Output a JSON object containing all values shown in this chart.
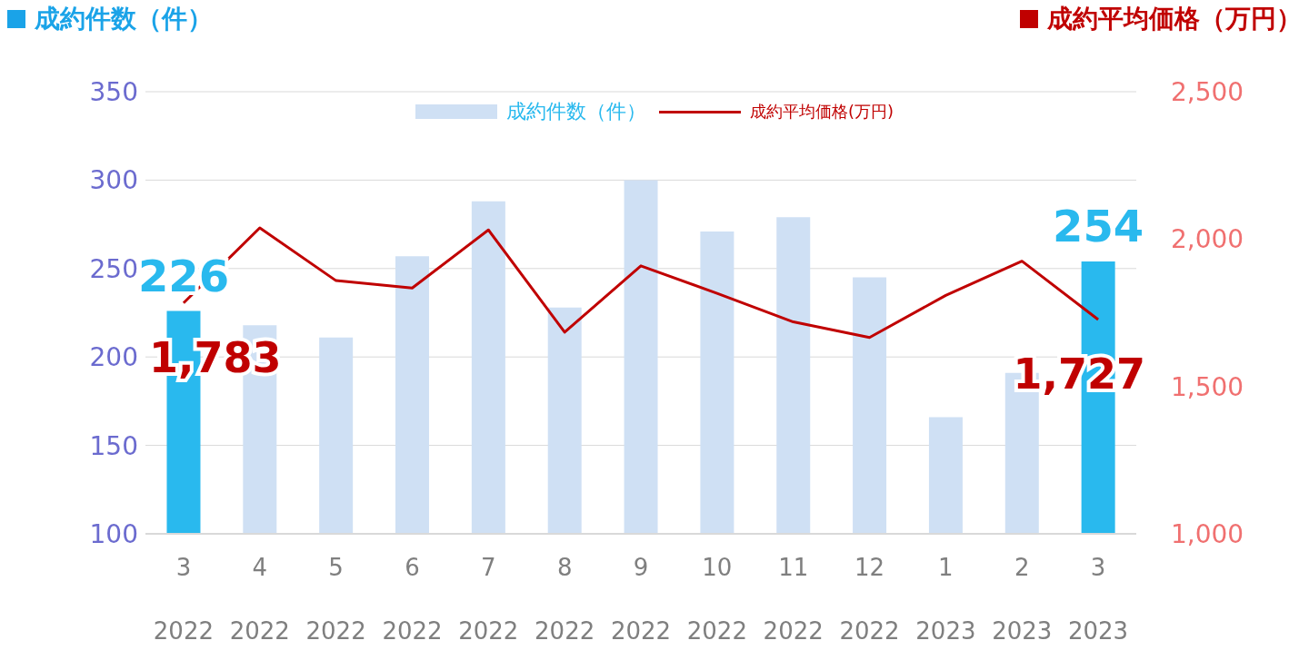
{
  "chart_data": {
    "type": "bar",
    "ylabel": "成約件数（件）",
    "y2label": "成約平均価格（万円）",
    "categories": [
      "3\n2022",
      "4\n2022",
      "5\n2022",
      "6\n2022",
      "7\n2022",
      "8\n2022",
      "9\n2022",
      "10\n2022",
      "11\n2022",
      "12\n2022",
      "1\n2023",
      "2\n2023",
      "3\n2023"
    ],
    "series": [
      {
        "name": "成約件数（件）",
        "color": "#cfe0f4",
        "colors": [
          "#29b9ee",
          "#cfe0f4",
          "#cfe0f4",
          "#cfe0f4",
          "#cfe0f4",
          "#cfe0f4",
          "#cfe0f4",
          "#cfe0f4",
          "#cfe0f4",
          "#cfe0f4",
          "#cfe0f4",
          "#cfe0f4",
          "#29b9ee"
        ],
        "values": [
          226,
          218,
          211,
          257,
          288,
          228,
          300,
          271,
          279,
          245,
          166,
          191,
          254
        ],
        "value_labels": [
          "226",
          null,
          null,
          null,
          null,
          null,
          null,
          null,
          null,
          null,
          null,
          null,
          "254"
        ]
      },
      {
        "name": "成約平均価格(万円)",
        "type": "line",
        "axis": "y2",
        "color": "#c00000",
        "values": [
          1783,
          2038,
          1859,
          1834,
          2031,
          1684,
          1909,
          1816,
          1719,
          1666,
          1809,
          1925,
          1727
        ],
        "value_labels": [
          "1,783",
          null,
          null,
          null,
          null,
          null,
          null,
          null,
          null,
          null,
          null,
          null,
          "1,727"
        ]
      }
    ],
    "ylim": [
      100,
      350
    ],
    "yticks": [
      100,
      150,
      200,
      250,
      300,
      350
    ],
    "y2lim": [
      1000,
      2500
    ],
    "y2ticks": [
      {
        "value": 1000,
        "label": "1,000"
      },
      {
        "value": 1500,
        "label": "1,500"
      },
      {
        "value": 2000,
        "label": "2,000"
      },
      {
        "value": 2500,
        "label": "2,500"
      }
    ],
    "grid": "y",
    "legend": "top",
    "marker": "none",
    "line_style": "solid"
  }
}
